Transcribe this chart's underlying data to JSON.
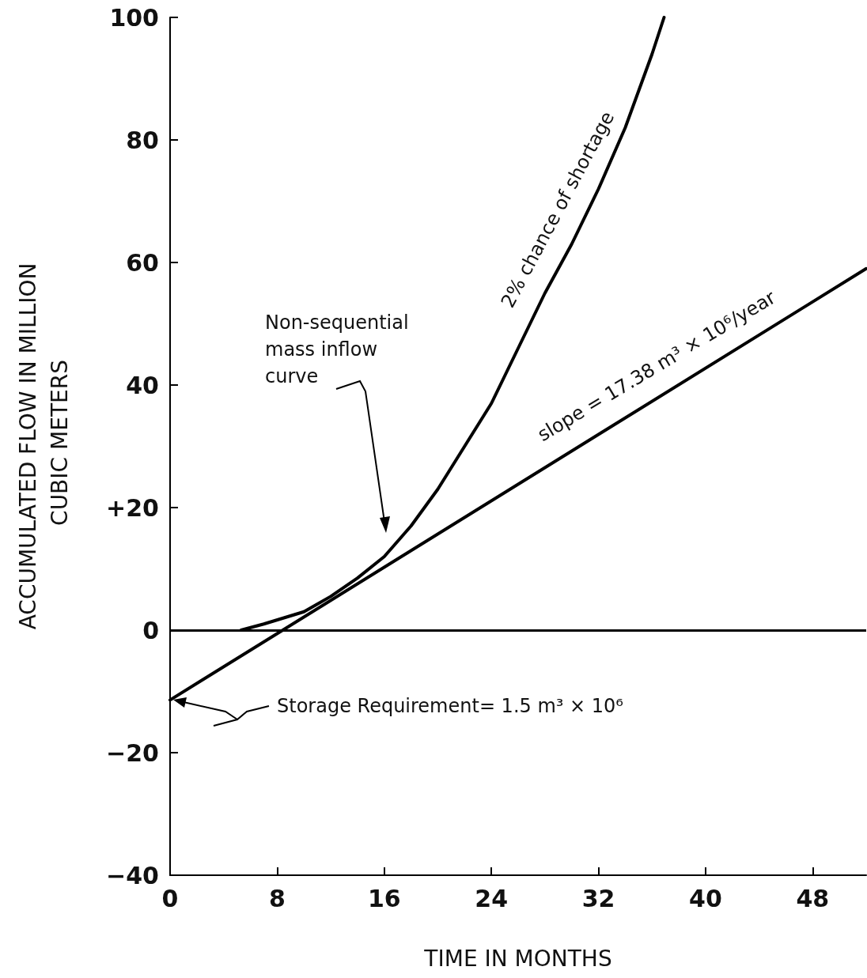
{
  "chart_data": {
    "type": "line",
    "xlabel": "TIME IN MONTHS",
    "ylabel": "ACCUMULATED FLOW IN MILLION CUBIC METERS",
    "xlim": [
      0,
      52
    ],
    "ylim": [
      -40,
      100
    ],
    "xticks": [
      0,
      8,
      16,
      24,
      32,
      40,
      48
    ],
    "yticks": [
      {
        "value": -40,
        "label": "−40"
      },
      {
        "value": -20,
        "label": "−20"
      },
      0,
      {
        "value": 20,
        "label": "+20"
      },
      40,
      60,
      80,
      100
    ],
    "grid": false,
    "marker": "none",
    "line_style": "solid",
    "series": [
      {
        "color": "#000000",
        "x": [
          5.3,
          7,
          8.5,
          10,
          12,
          14,
          16,
          18,
          20,
          22,
          24,
          26,
          28,
          30,
          32,
          34,
          36,
          36.9
        ],
        "values": [
          0,
          1,
          2,
          3,
          5.5,
          8.5,
          12,
          17,
          23,
          30,
          37,
          46,
          55,
          63,
          72,
          82,
          94,
          100
        ]
      },
      {
        "color": "#000000",
        "x": [
          0,
          52
        ],
        "values": [
          -11.4,
          59
        ]
      }
    ],
    "ref_lines": [
      {
        "axis": "y",
        "value": 0,
        "color": "#000000"
      }
    ],
    "annotations": [
      "Non-sequential mass inflow curve",
      "2% chance of shortage",
      "slope = 17.38 m³ × 10⁶/year",
      "Storage Requirement= 1.5 m³ × 10⁶"
    ]
  }
}
